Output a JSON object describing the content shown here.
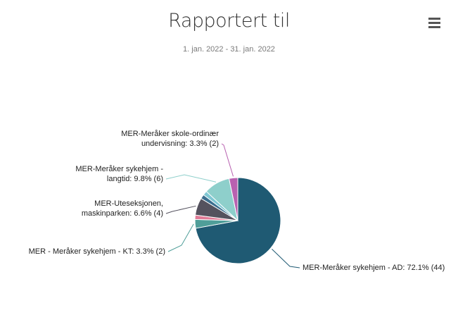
{
  "chart_data": {
    "type": "pie",
    "title": "Rapportert til",
    "subtitle": "1. jan. 2022 - 31. jan. 2022",
    "slices": [
      {
        "label": "MER-Meråker sykehjem - AD: 72.1% (44)",
        "value": 44,
        "color": "#1f5a73"
      },
      {
        "label": "MER - Meråker sykehjem - KT: 3.3% (2)",
        "value": 2,
        "color": "#4f9e99"
      },
      {
        "label": "",
        "value": 1,
        "color": "#e07b97"
      },
      {
        "label": "MER-Uteseksjonen, maskinparken: 6.6% (4)",
        "value": 4,
        "color": "#54525e"
      },
      {
        "label": "",
        "value": 1,
        "color": "#3c6f8f"
      },
      {
        "label": "",
        "value": 1,
        "color": "#7fc7d3"
      },
      {
        "label": "MER-Meråker sykehjem - langtid: 9.8% (6)",
        "value": 6,
        "color": "#8ecfcb"
      },
      {
        "label": "MER-Meråker skole-ordinær undervisning: 3.3% (2)",
        "value": 2,
        "color": "#b861b0"
      }
    ]
  },
  "toolbar": {
    "menu_icon": "hamburger-menu-icon"
  }
}
